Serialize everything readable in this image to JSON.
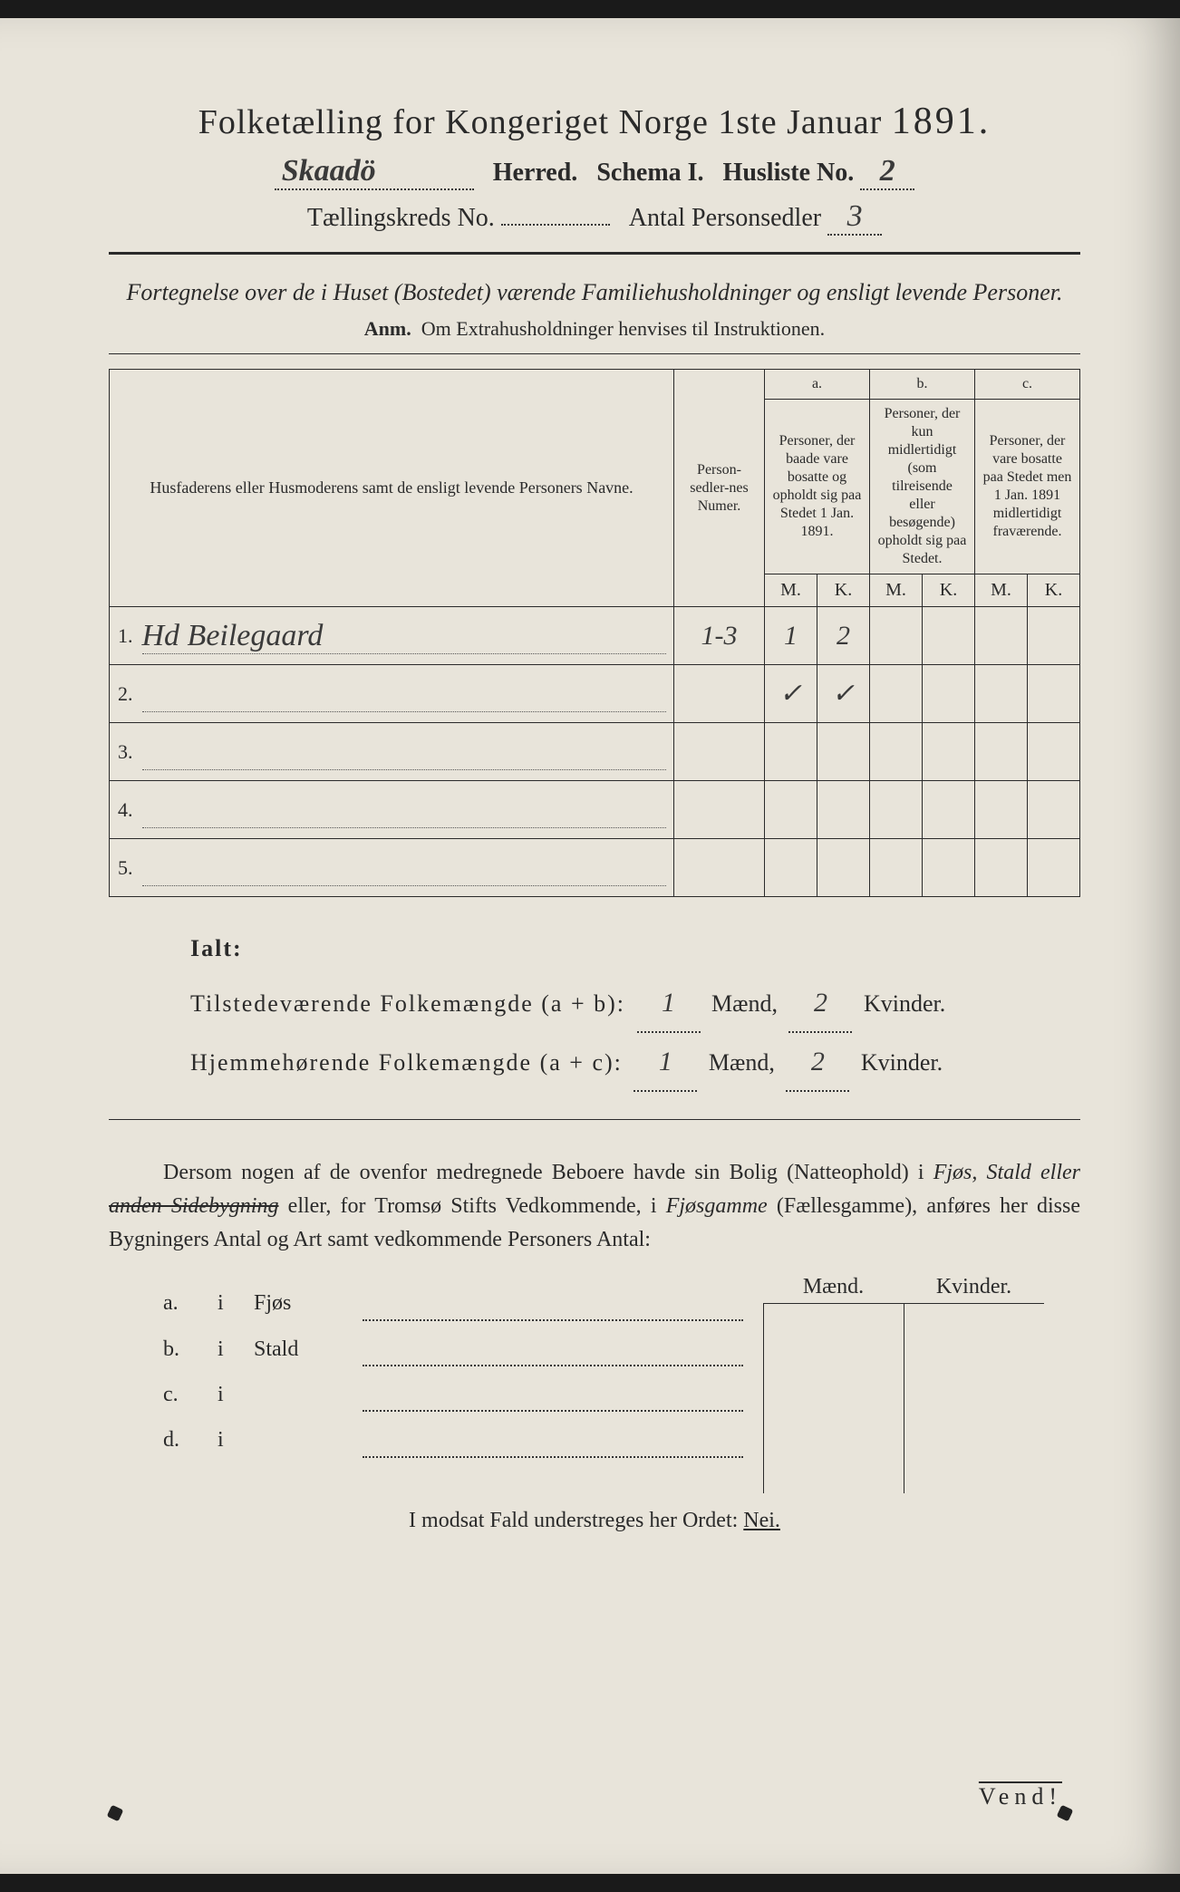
{
  "colors": {
    "paper": "#e8e4da",
    "ink": "#2a2a2a",
    "hand": "#3a3a3a",
    "background": "#1a1a1a"
  },
  "header": {
    "title_pre": "Folketælling for Kongeriget Norge 1ste Januar",
    "year": "1891.",
    "herred_hand": "Skaadö",
    "herred_label": "Herred.",
    "schema_label": "Schema I.",
    "husliste_label": "Husliste No.",
    "husliste_val": "2",
    "kreds_label": "Tællingskreds No.",
    "kreds_val": "",
    "antal_label": "Antal Personsedler",
    "antal_val": "3"
  },
  "subtitle": "Fortegnelse over de i Huset (Bostedet) værende Familiehusholdninger og ensligt levende Personer.",
  "anm_label": "Anm.",
  "anm_text": "Om Extrahusholdninger henvises til Instruktionen.",
  "table": {
    "col1": "Husfaderens eller Husmoderens samt de ensligt levende Personers Navne.",
    "col2": "Person-sedler-nes Numer.",
    "col_a_top": "a.",
    "col_a": "Personer, der baade vare bosatte og opholdt sig paa Stedet 1 Jan. 1891.",
    "col_b_top": "b.",
    "col_b": "Personer, der kun midlertidigt (som tilreisende eller besøgende) opholdt sig paa Stedet.",
    "col_c_top": "c.",
    "col_c": "Personer, der vare bosatte paa Stedet men 1 Jan. 1891 midlertidigt fraværende.",
    "M": "M.",
    "K": "K.",
    "rows": [
      {
        "n": "1.",
        "name": "Hd Beilegaard",
        "nums": "1-3",
        "aM": "1",
        "aK": "2",
        "bM": "",
        "bK": "",
        "cM": "",
        "cK": ""
      },
      {
        "n": "2.",
        "name": "",
        "nums": "",
        "aM": "✓",
        "aK": "✓",
        "bM": "",
        "bK": "",
        "cM": "",
        "cK": ""
      },
      {
        "n": "3.",
        "name": "",
        "nums": "",
        "aM": "",
        "aK": "",
        "bM": "",
        "bK": "",
        "cM": "",
        "cK": ""
      },
      {
        "n": "4.",
        "name": "",
        "nums": "",
        "aM": "",
        "aK": "",
        "bM": "",
        "bK": "",
        "cM": "",
        "cK": ""
      },
      {
        "n": "5.",
        "name": "",
        "nums": "",
        "aM": "",
        "aK": "",
        "bM": "",
        "bK": "",
        "cM": "",
        "cK": ""
      }
    ]
  },
  "ialt": {
    "label": "Ialt:",
    "line1_pre": "Tilstedeværende Folkemængde (a + b):",
    "line2_pre": "Hjemmehørende Folkemængde (a + c):",
    "m1": "1",
    "k1": "2",
    "m2": "1",
    "k2": "2",
    "maend": "Mænd,",
    "kvinder": "Kvinder."
  },
  "para": {
    "t1": "Dersom nogen af de ovenfor medregnede Beboere havde sin Bolig (Natteophold) i ",
    "it1": "Fjøs, Stald eller ",
    "strike": "anden Sidebygning",
    "t2": " eller, for Tromsø Stifts Vedkommende, i ",
    "it2": "Fjøsgamme",
    "t3": " (Fællesgamme), anføres her disse Bygningers Antal og Art samt vedkommende Personers Antal:"
  },
  "mkhead": {
    "m": "Mænd.",
    "k": "Kvinder."
  },
  "abcd": [
    {
      "l": "a.",
      "i": "i",
      "t": "Fjøs"
    },
    {
      "l": "b.",
      "i": "i",
      "t": "Stald"
    },
    {
      "l": "c.",
      "i": "i",
      "t": ""
    },
    {
      "l": "d.",
      "i": "i",
      "t": ""
    }
  ],
  "bottom": {
    "text_pre": "I modsat Fald understreges her Ordet: ",
    "nei": "Nei."
  },
  "vend": "Vend!"
}
